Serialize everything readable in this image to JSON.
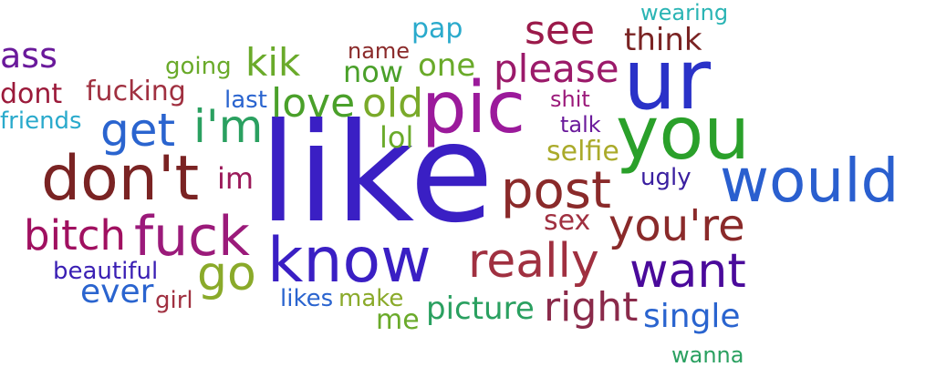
{
  "word_cloud": {
    "words": [
      {
        "text": "like",
        "color": "#3a1fc4"
      },
      {
        "text": "ur",
        "color": "#2a32c8"
      },
      {
        "text": "pic",
        "color": "#9b1a9b"
      },
      {
        "text": "you",
        "color": "#2aa02a"
      },
      {
        "text": "would",
        "color": "#2a5fcf"
      },
      {
        "text": "don't",
        "color": "#7a2323"
      },
      {
        "text": "know",
        "color": "#3a1fc4"
      },
      {
        "text": "post",
        "color": "#8a2a2a"
      },
      {
        "text": "fuck",
        "color": "#9b1a7a"
      },
      {
        "text": "bitch",
        "color": "#a01060"
      },
      {
        "text": "get",
        "color": "#2a64cf"
      },
      {
        "text": "i'm",
        "color": "#2aa060"
      },
      {
        "text": "love",
        "color": "#4aa02a"
      },
      {
        "text": "old",
        "color": "#7aaa2a"
      },
      {
        "text": "really",
        "color": "#a03040"
      },
      {
        "text": "want",
        "color": "#4a0a9b"
      },
      {
        "text": "you're",
        "color": "#8a2a2a"
      },
      {
        "text": "go",
        "color": "#8aaa2a"
      },
      {
        "text": "please",
        "color": "#9b1a6a"
      },
      {
        "text": "see",
        "color": "#9b1a4a"
      },
      {
        "text": "right",
        "color": "#8a2a4a"
      },
      {
        "text": "kik",
        "color": "#6aaa2a"
      },
      {
        "text": "now",
        "color": "#4aa02a"
      },
      {
        "text": "one",
        "color": "#6aaa2a"
      },
      {
        "text": "think",
        "color": "#7a2323"
      },
      {
        "text": "ever",
        "color": "#2a64cf"
      },
      {
        "text": "single",
        "color": "#2a64cf"
      },
      {
        "text": "picture",
        "color": "#2aa060"
      },
      {
        "text": "selfie",
        "color": "#aaaa2a"
      },
      {
        "text": "sex",
        "color": "#a03040"
      },
      {
        "text": "ass",
        "color": "#6a1a9b"
      },
      {
        "text": "dont",
        "color": "#9b1a3a"
      },
      {
        "text": "fucking",
        "color": "#a03040"
      },
      {
        "text": "friends",
        "color": "#2aaacc"
      },
      {
        "text": "going",
        "color": "#6aaa2a"
      },
      {
        "text": "name",
        "color": "#8a2a2a"
      },
      {
        "text": "pap",
        "color": "#2aaacc"
      },
      {
        "text": "wearing",
        "color": "#2ab4b4"
      },
      {
        "text": "last",
        "color": "#2a64cf"
      },
      {
        "text": "lol",
        "color": "#6aaa2a"
      },
      {
        "text": "im",
        "color": "#9b1a5a"
      },
      {
        "text": "shit",
        "color": "#9b1a7a"
      },
      {
        "text": "talk",
        "color": "#6a1a9b"
      },
      {
        "text": "ugly",
        "color": "#3a1fa0"
      },
      {
        "text": "beautiful",
        "color": "#3a1fb4"
      },
      {
        "text": "girl",
        "color": "#a03040"
      },
      {
        "text": "likes",
        "color": "#2a64cf"
      },
      {
        "text": "make",
        "color": "#8aaa2a"
      },
      {
        "text": "me",
        "color": "#6aaa2a"
      },
      {
        "text": "wanna",
        "color": "#2aa060"
      }
    ]
  }
}
